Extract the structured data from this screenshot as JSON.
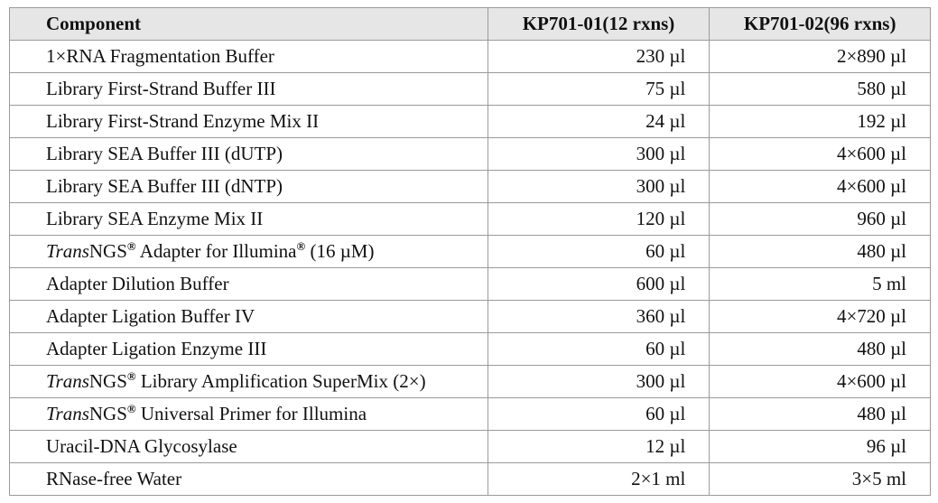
{
  "table": {
    "header": [
      "Component",
      "KP701-01(12 rxns)",
      "KP701-02(96 rxns)"
    ],
    "rows": [
      [
        "1×RNA Fragmentation Buffer",
        "230 µl",
        "2×890 µl"
      ],
      [
        "Library First-Strand Buffer III",
        "75 µl",
        "580 µl"
      ],
      [
        "Library First-Strand Enzyme Mix II",
        "24 µl",
        "192 µl"
      ],
      [
        "Library SEA Buffer III (dUTP)",
        "300 µl",
        "4×600 µl"
      ],
      [
        "Library SEA Buffer III (dNTP)",
        "300 µl",
        "4×600 µl"
      ],
      [
        "Library SEA Enzyme Mix II",
        "120 µl",
        "960 µl"
      ],
      [
        [
          {
            "text": "Trans",
            "style": "italic"
          },
          {
            "text": "NGS"
          },
          {
            "text": "®",
            "style": "sup"
          },
          {
            "text": " Adapter for Illumina"
          },
          {
            "text": "®",
            "style": "sup"
          },
          {
            "text": " (16 µM)"
          }
        ],
        "60 µl",
        "480 µl"
      ],
      [
        "Adapter Dilution Buffer",
        "600 µl",
        "5 ml"
      ],
      [
        "Adapter Ligation Buffer IV",
        "360 µl",
        "4×720 µl"
      ],
      [
        "Adapter Ligation Enzyme III",
        "60 µl",
        "480 µl"
      ],
      [
        [
          {
            "text": "Trans",
            "style": "italic"
          },
          {
            "text": "NGS"
          },
          {
            "text": "®",
            "style": "sup"
          },
          {
            "text": " Library Amplification SuperMix (2×)"
          }
        ],
        "300 µl",
        "4×600 µl"
      ],
      [
        [
          {
            "text": "Trans",
            "style": "italic"
          },
          {
            "text": "NGS"
          },
          {
            "text": "®",
            "style": "sup"
          },
          {
            "text": " Universal Primer for Illumina"
          }
        ],
        "60 µl",
        "480 µl"
      ],
      [
        "Uracil-DNA Glycosylase",
        "12 µl",
        "96 µl"
      ],
      [
        "RNase-free Water",
        "2×1 ml",
        "3×5 ml"
      ]
    ]
  }
}
